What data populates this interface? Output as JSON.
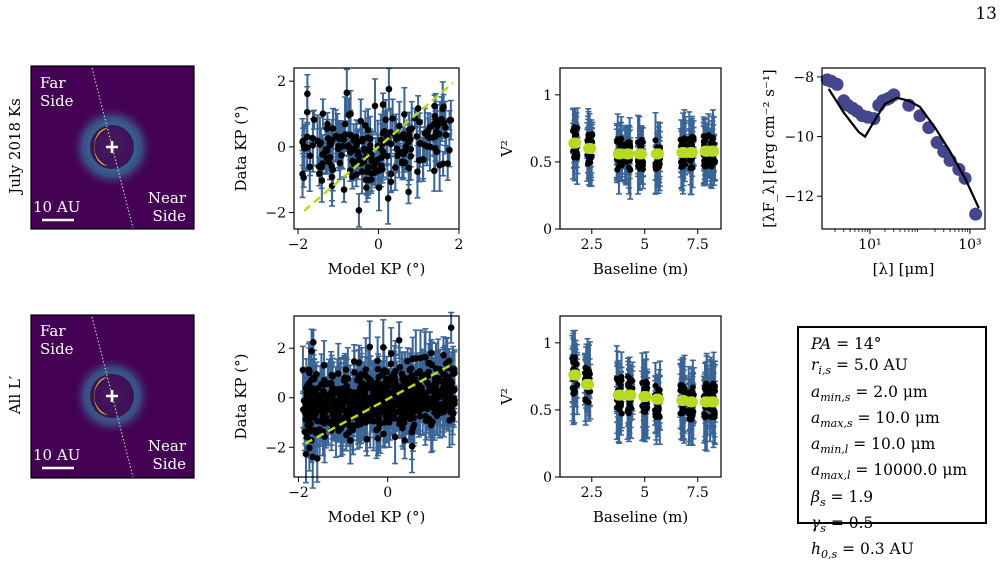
{
  "page_number": "13",
  "rows": [
    {
      "row_label": "July 2018 Ks",
      "image": {
        "far_label": [
          "Far",
          "Side"
        ],
        "near_label": [
          "Near",
          "Side"
        ],
        "scale_label": "10 AU"
      }
    },
    {
      "row_label": "All L′",
      "image": {
        "far_label": [
          "Far",
          "Side"
        ],
        "near_label": [
          "Near",
          "Side"
        ],
        "scale_label": "10 AU"
      }
    }
  ],
  "colors": {
    "data": "#3a6494",
    "model": "#b5dc22",
    "points": "#000000",
    "sed": "#46468c",
    "disk_bright": "#f7e51f",
    "disk_bg": "#440154"
  },
  "chart_data": [
    {
      "id": "kp-top",
      "type": "scatter",
      "xlabel": "Model KP (°)",
      "ylabel": "Data KP (°)",
      "xlim": [
        -2.1,
        2.0
      ],
      "ylim": [
        -2.5,
        2.4
      ],
      "xticks": [
        -2,
        0,
        2
      ],
      "yticks": [
        -2,
        0,
        2
      ],
      "fit_line": {
        "x": [
          -1.85,
          1.85
        ],
        "y": [
          -1.95,
          1.95
        ]
      },
      "npoints": 210,
      "spread": 0.6,
      "err": 0.55,
      "xrange": [
        -1.9,
        1.8
      ],
      "seed": 3
    },
    {
      "id": "v2-top",
      "type": "scatter",
      "xlabel": "Baseline (m)",
      "ylabel": "V²",
      "xlim": [
        1.0,
        8.6
      ],
      "ylim": [
        0.0,
        1.2
      ],
      "xticks": [
        2.5,
        5.0,
        7.5
      ],
      "yticks": [
        0.0,
        0.5,
        1.0
      ],
      "groups": [
        {
          "x": 1.7,
          "v": 0.64
        },
        {
          "x": 2.4,
          "v": 0.6
        },
        {
          "x": 3.8,
          "v": 0.56
        },
        {
          "x": 4.2,
          "v": 0.56
        },
        {
          "x": 4.8,
          "v": 0.56
        },
        {
          "x": 5.6,
          "v": 0.56
        },
        {
          "x": 6.8,
          "v": 0.57
        },
        {
          "x": 7.2,
          "v": 0.57
        },
        {
          "x": 7.9,
          "v": 0.58
        },
        {
          "x": 8.2,
          "v": 0.58
        }
      ],
      "spread": 0.12,
      "err": 0.22,
      "seed": 7
    },
    {
      "id": "sed",
      "type": "line",
      "xlabel": "[λ] [μm]",
      "ylabel": "[λF_λ] [erg cm⁻² s⁻¹]",
      "xscale": "log",
      "xlim": [
        1.1,
        2000
      ],
      "ylim": [
        -13.1,
        -7.7
      ],
      "xticks": [
        10,
        1000
      ],
      "xticklabels": [
        "10¹",
        "10³"
      ],
      "yticks": [
        -8,
        -10,
        -12
      ],
      "model_line": {
        "x": [
          1.5,
          3,
          6,
          8,
          12,
          20,
          35,
          60,
          100,
          200,
          400,
          800,
          1500
        ],
        "y": [
          -8.4,
          -9.2,
          -9.85,
          -10.0,
          -9.5,
          -8.9,
          -8.7,
          -8.8,
          -9.0,
          -9.7,
          -10.5,
          -11.4,
          -12.4
        ]
      },
      "observed": {
        "x": [
          1.4,
          1.7,
          2.2,
          3.0,
          3.6,
          4.5,
          5.5,
          7,
          9,
          12,
          15,
          18,
          22,
          25,
          30,
          60,
          100,
          150,
          220,
          300,
          400,
          600,
          800,
          1300
        ],
        "y": [
          -8.1,
          -8.15,
          -8.25,
          -8.8,
          -8.95,
          -9.05,
          -9.15,
          -9.3,
          -9.35,
          -9.4,
          -8.95,
          -8.8,
          -8.75,
          -8.7,
          -8.6,
          -8.95,
          -9.3,
          -9.7,
          -10.2,
          -10.5,
          -10.8,
          -11.1,
          -11.4,
          -12.6
        ]
      }
    },
    {
      "id": "kp-bottom",
      "type": "scatter",
      "xlabel": "Model KP (°)",
      "ylabel": "Data KP (°)",
      "xlim": [
        -2.1,
        1.6
      ],
      "ylim": [
        -3.2,
        3.3
      ],
      "xticks": [
        -2,
        0
      ],
      "yticks": [
        -2,
        0,
        2
      ],
      "fit_line": {
        "x": [
          -1.85,
          1.5
        ],
        "y": [
          -1.85,
          1.4
        ]
      },
      "npoints": 700,
      "spread": 0.7,
      "err": 0.85,
      "xrange": [
        -1.9,
        1.5
      ],
      "seed": 11
    },
    {
      "id": "v2-bottom",
      "type": "scatter",
      "xlabel": "Baseline (m)",
      "ylabel": "V²",
      "xlim": [
        1.0,
        8.6
      ],
      "ylim": [
        0.0,
        1.2
      ],
      "xticks": [
        2.5,
        5.0,
        7.5
      ],
      "yticks": [
        0.0,
        0.5,
        1.0
      ],
      "groups": [
        {
          "x": 1.7,
          "v": 0.76
        },
        {
          "x": 2.3,
          "v": 0.69
        },
        {
          "x": 3.8,
          "v": 0.61
        },
        {
          "x": 4.3,
          "v": 0.61
        },
        {
          "x": 5.0,
          "v": 0.6
        },
        {
          "x": 5.6,
          "v": 0.58
        },
        {
          "x": 6.8,
          "v": 0.57
        },
        {
          "x": 7.2,
          "v": 0.56
        },
        {
          "x": 7.9,
          "v": 0.56
        },
        {
          "x": 8.2,
          "v": 0.56
        }
      ],
      "spread": 0.14,
      "err": 0.26,
      "seed": 19
    }
  ],
  "params": [
    {
      "sym": "PA",
      "sub": "",
      "val": "= 14°"
    },
    {
      "sym": "r",
      "sub": "i,s",
      "val": "= 5.0 AU"
    },
    {
      "sym": "a",
      "sub": "min,s",
      "val": "= 2.0 μm"
    },
    {
      "sym": "a",
      "sub": "max,s",
      "val": "= 10.0 μm"
    },
    {
      "sym": "a",
      "sub": "min,l",
      "val": "= 10.0 μm"
    },
    {
      "sym": "a",
      "sub": "max,l",
      "val": "= 10000.0 μm"
    },
    {
      "sym": "β",
      "sub": "s",
      "val": "= 1.9"
    },
    {
      "sym": "γ",
      "sub": "s",
      "val": "= 0.5"
    },
    {
      "sym": "h",
      "sub": "0,s",
      "val": "= 0.3 AU"
    }
  ]
}
